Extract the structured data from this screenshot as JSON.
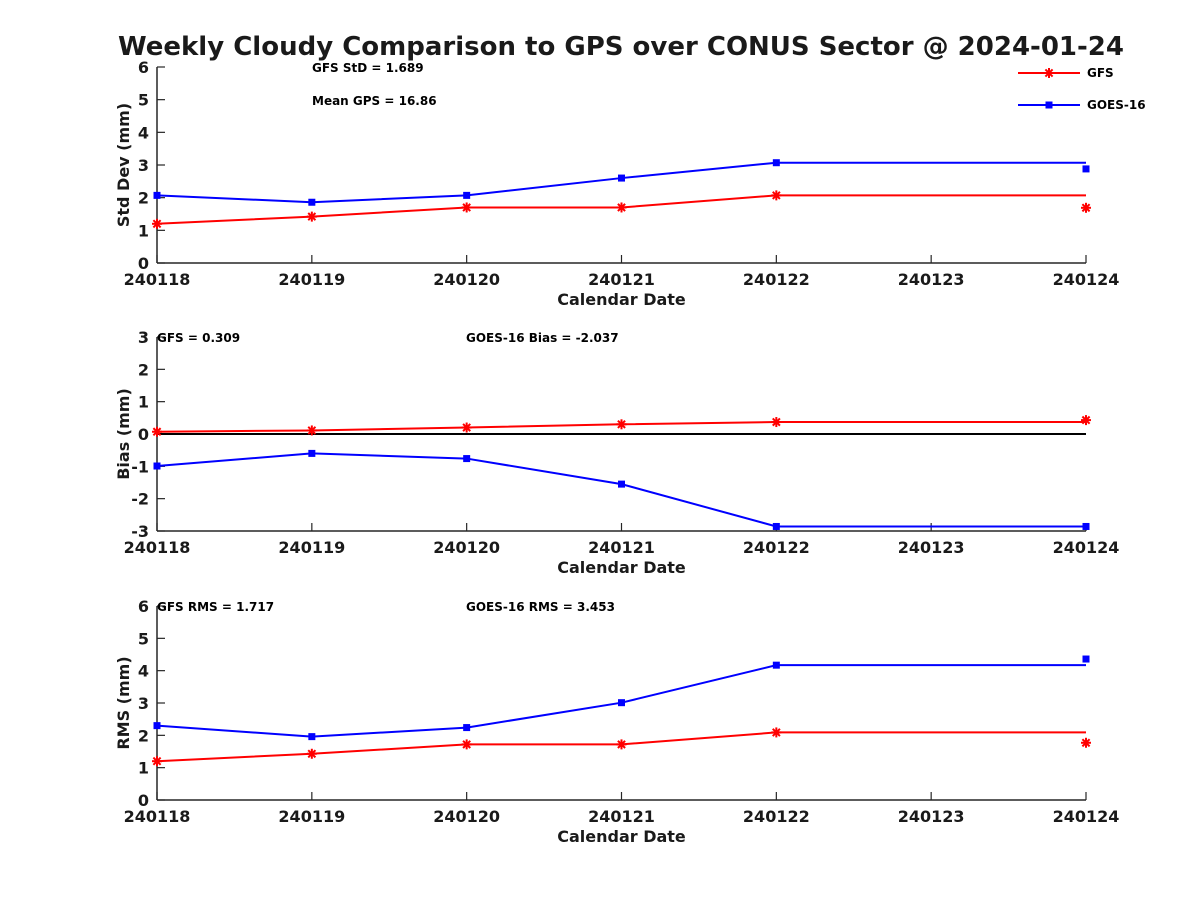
{
  "figure": {
    "title": "Weekly Cloudy Comparison to GPS over CONUS Sector @ 2024-01-24"
  },
  "legend": {
    "placement": "top-right",
    "entries": [
      {
        "name": "GFS",
        "color": "#ff0000",
        "marker": "asterisk"
      },
      {
        "name": "GOES-16",
        "color": "#0000ff",
        "marker": "square"
      }
    ]
  },
  "chart_data": [
    {
      "type": "line",
      "id": "std",
      "xlabel": "Calendar Date",
      "ylabel": "Std Dev (mm)",
      "x_ticks": [
        "240118",
        "240119",
        "240120",
        "240121",
        "240122",
        "240123",
        "240124"
      ],
      "ylim": [
        0,
        6
      ],
      "y_ticks": [
        0,
        1,
        2,
        3,
        4,
        5,
        6
      ],
      "zero_line": false,
      "annotations": [
        "GFS StD = 1.689",
        "Mean GPS = 16.86"
      ],
      "series": [
        {
          "name": "GFS",
          "color": "#ff0000",
          "marker": "asterisk",
          "line_x": [
            0,
            1,
            2,
            3,
            4,
            6
          ],
          "line_y": [
            1.2,
            1.42,
            1.7,
            1.7,
            2.07,
            2.07
          ],
          "marker_x": [
            0,
            1,
            2,
            3,
            4,
            6
          ],
          "marker_y": [
            1.2,
            1.42,
            1.7,
            1.7,
            2.07,
            1.69
          ]
        },
        {
          "name": "GOES-16",
          "color": "#0000ff",
          "marker": "square",
          "line_x": [
            0,
            1,
            2,
            3,
            4,
            6
          ],
          "line_y": [
            2.07,
            1.86,
            2.07,
            2.6,
            3.07,
            3.07
          ],
          "marker_x": [
            0,
            1,
            2,
            3,
            4,
            6
          ],
          "marker_y": [
            2.07,
            1.86,
            2.07,
            2.6,
            3.07,
            2.88
          ]
        }
      ]
    },
    {
      "type": "line",
      "id": "bias",
      "xlabel": "Calendar Date",
      "ylabel": "Bias (mm)",
      "x_ticks": [
        "240118",
        "240119",
        "240120",
        "240121",
        "240122",
        "240123",
        "240124"
      ],
      "ylim": [
        -3,
        3
      ],
      "y_ticks": [
        -3,
        -2,
        -1,
        0,
        1,
        2,
        3
      ],
      "zero_line": true,
      "annotations": [
        "GFS = 0.309",
        "GOES-16 Bias  = -2.037"
      ],
      "series": [
        {
          "name": "GFS",
          "color": "#ff0000",
          "marker": "asterisk",
          "line_x": [
            0,
            1,
            2,
            3,
            4,
            6
          ],
          "line_y": [
            0.07,
            0.11,
            0.2,
            0.3,
            0.37,
            0.37
          ],
          "marker_x": [
            0,
            1,
            2,
            3,
            4,
            6
          ],
          "marker_y": [
            0.07,
            0.11,
            0.2,
            0.3,
            0.37,
            0.43
          ]
        },
        {
          "name": "GOES-16",
          "color": "#0000ff",
          "marker": "square",
          "line_x": [
            0,
            1,
            2,
            3,
            4,
            6
          ],
          "line_y": [
            -0.99,
            -0.6,
            -0.76,
            -1.55,
            -2.86,
            -2.86
          ],
          "marker_x": [
            0,
            1,
            2,
            3,
            4,
            6
          ],
          "marker_y": [
            -0.99,
            -0.6,
            -0.76,
            -1.55,
            -2.86,
            -2.86
          ]
        }
      ]
    },
    {
      "type": "line",
      "id": "rms",
      "xlabel": "Calendar Date",
      "ylabel": "RMS (mm)",
      "x_ticks": [
        "240118",
        "240119",
        "240120",
        "240121",
        "240122",
        "240123",
        "240124"
      ],
      "ylim": [
        0,
        6
      ],
      "y_ticks": [
        0,
        1,
        2,
        3,
        4,
        5,
        6
      ],
      "zero_line": false,
      "annotations": [
        "GFS RMS = 1.717",
        "GOES-16 RMS = 3.453"
      ],
      "series": [
        {
          "name": "GFS",
          "color": "#ff0000",
          "marker": "asterisk",
          "line_x": [
            0,
            1,
            2,
            3,
            4,
            6
          ],
          "line_y": [
            1.2,
            1.43,
            1.72,
            1.72,
            2.09,
            2.09
          ],
          "marker_x": [
            0,
            1,
            2,
            3,
            4,
            6
          ],
          "marker_y": [
            1.2,
            1.43,
            1.72,
            1.72,
            2.09,
            1.77
          ]
        },
        {
          "name": "GOES-16",
          "color": "#0000ff",
          "marker": "square",
          "line_x": [
            0,
            1,
            2,
            3,
            4,
            6
          ],
          "line_y": [
            2.3,
            1.96,
            2.24,
            3.01,
            4.17,
            4.17
          ],
          "marker_x": [
            0,
            1,
            2,
            3,
            4,
            6
          ],
          "marker_y": [
            2.3,
            1.96,
            2.24,
            3.01,
            4.17,
            4.36
          ]
        }
      ]
    }
  ]
}
